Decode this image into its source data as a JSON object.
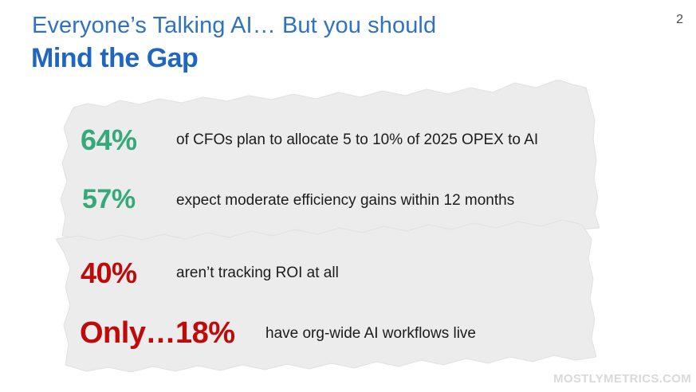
{
  "header": {
    "title_line1": "Everyone’s Talking AI… But you should",
    "title_line2": "Mind the Gap",
    "page_number": "2"
  },
  "stats": [
    {
      "value": "64%",
      "text": "of CFOs plan to allocate 5 to 10% of 2025 OPEX to AI",
      "color": "#34a97a"
    },
    {
      "value": "57%",
      "text": "expect moderate efficiency gains within 12 months",
      "color": "#34a97a"
    },
    {
      "value": "40%",
      "text": "aren’t tracking ROI at all",
      "color": "#c00a0a"
    },
    {
      "value": "Only…18%",
      "text": "have org-wide AI workflows live",
      "color": "#c00a0a"
    }
  ],
  "footer": {
    "watermark": "MOSTLYMETRICS.COM"
  },
  "colors": {
    "title_blue": "#2f73c0",
    "positive_green": "#34a97a",
    "negative_red": "#c00a0a",
    "paper": "#ececec"
  }
}
